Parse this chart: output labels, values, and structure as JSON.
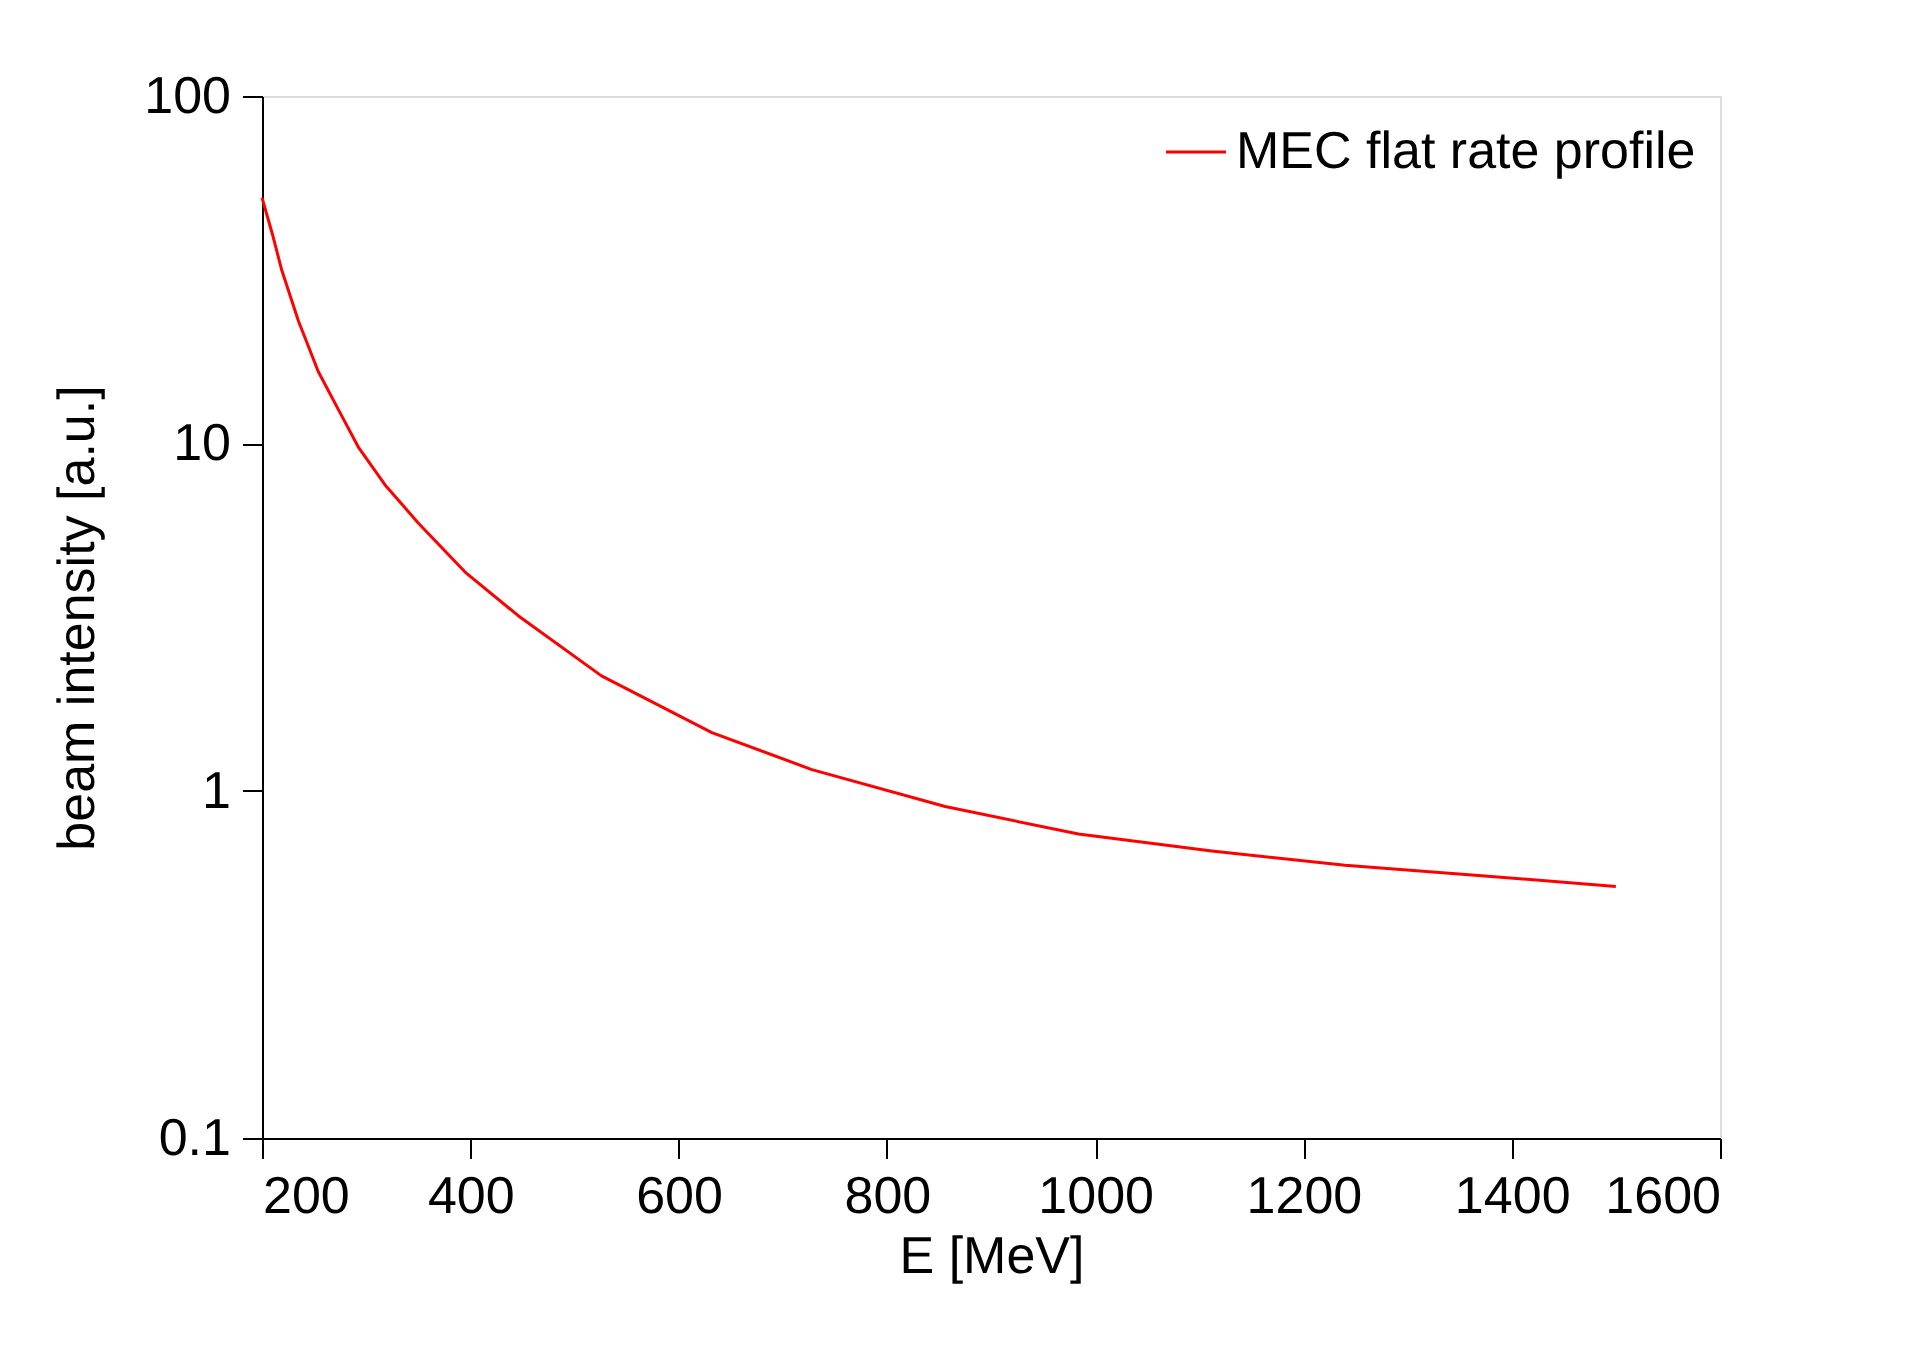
{
  "chart_data": {
    "type": "line",
    "xlabel": "E [MeV]",
    "ylabel": "beam intensity [a.u.]",
    "log": "y",
    "xlim": [
      200,
      1600
    ],
    "xticks": [
      200,
      400,
      600,
      800,
      1000,
      1200,
      1400,
      1600
    ],
    "ylim": [
      0.1,
      100
    ],
    "yticks": [
      0.1,
      1,
      10,
      100
    ],
    "grid": false,
    "legend": "top right",
    "series": [
      {
        "name": "MEC flat rate profile",
        "color": "#ff0000",
        "x": [
          200,
          210,
          219,
          235,
          254,
          274,
          293,
          318,
          350,
          395,
          446,
          526,
          632,
          728,
          856,
          984,
          1112,
          1240,
          1368,
          1500
        ],
        "values": [
          51,
          40,
          31.5,
          22.5,
          16.1,
          12.4,
          9.7,
          7.6,
          5.9,
          4.26,
          3.19,
          2.14,
          1.47,
          1.15,
          0.9,
          0.75,
          0.67,
          0.61,
          0.57,
          0.53
        ]
      }
    ]
  }
}
